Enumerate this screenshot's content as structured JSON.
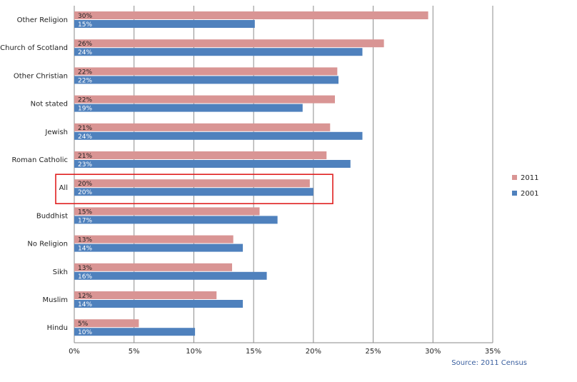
{
  "chart_data": {
    "type": "bar",
    "orientation": "horizontal",
    "categories": [
      "Other Religion",
      "Church of Scotland",
      "Other Christian",
      "Not stated",
      "Jewish",
      "Roman Catholic",
      "All",
      "Buddhist",
      "No Religion",
      "Sikh",
      "Muslim",
      "Hindu"
    ],
    "series": [
      {
        "name": "2011",
        "color": "#d99594",
        "values": [
          29.6,
          25.9,
          22.0,
          21.8,
          21.4,
          21.1,
          19.7,
          15.5,
          13.3,
          13.2,
          11.9,
          5.4
        ],
        "labels": [
          "30%",
          "26%",
          "22%",
          "22%",
          "21%",
          "21%",
          "20%",
          "15%",
          "13%",
          "13%",
          "12%",
          "5%"
        ]
      },
      {
        "name": "2001",
        "color": "#4f81bd",
        "values": [
          15.1,
          24.1,
          22.1,
          19.1,
          24.1,
          23.1,
          20.0,
          17.0,
          14.1,
          16.1,
          14.1,
          10.1
        ],
        "labels": [
          "15%",
          "24%",
          "22%",
          "19%",
          "24%",
          "23%",
          "20%",
          "17%",
          "14%",
          "16%",
          "14%",
          "10%"
        ]
      }
    ],
    "xlim": [
      0,
      35
    ],
    "xticks": [
      0,
      5,
      10,
      15,
      20,
      25,
      30,
      35
    ],
    "xtick_labels": [
      "0%",
      "5%",
      "10%",
      "15%",
      "20%",
      "25%",
      "30%",
      "35%"
    ],
    "grid": "vertical",
    "legend": "right",
    "highlight": {
      "category": "All",
      "color": "#e02020"
    },
    "source": "Source: 2011 Census",
    "source_color": "#3a5f9f",
    "title": "",
    "xlabel": "",
    "ylabel": ""
  }
}
